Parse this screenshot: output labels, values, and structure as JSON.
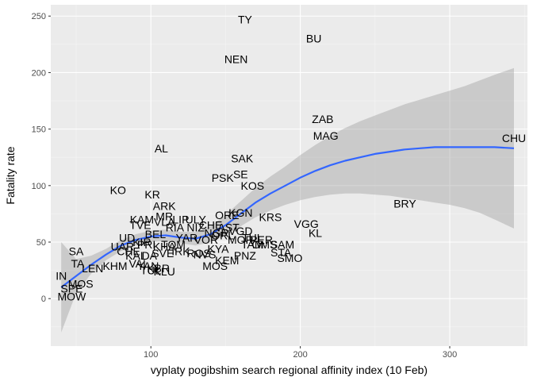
{
  "chart_data": {
    "type": "scatter",
    "title": "",
    "xlabel": "vyplaty pogibshim search regional affinity index (10 Feb)",
    "ylabel": "Fatality rate",
    "xlim": [
      33,
      352
    ],
    "ylim": [
      -42,
      260
    ],
    "x_ticks": [
      100,
      200,
      300
    ],
    "y_ticks": [
      0,
      50,
      100,
      150,
      200,
      250
    ],
    "grid": true,
    "legend": "none",
    "colors": {
      "panel": "#ebebeb",
      "grid_major": "#ffffff",
      "grid_minor": "#f5f5f5",
      "smooth_line": "#3366ff",
      "ribbon": "#999999"
    },
    "points": [
      {
        "label": "TY",
        "x": 163,
        "y": 247
      },
      {
        "label": "BU",
        "x": 209,
        "y": 230
      },
      {
        "label": "NEN",
        "x": 157,
        "y": 212
      },
      {
        "label": "ZAB",
        "x": 215,
        "y": 159
      },
      {
        "label": "MAG",
        "x": 217,
        "y": 144
      },
      {
        "label": "CHU",
        "x": 343,
        "y": 142
      },
      {
        "label": "AL",
        "x": 107,
        "y": 133
      },
      {
        "label": "SAK",
        "x": 161,
        "y": 124
      },
      {
        "label": "SE",
        "x": 160,
        "y": 110
      },
      {
        "label": "PSK",
        "x": 148,
        "y": 107
      },
      {
        "label": "KOS",
        "x": 168,
        "y": 100
      },
      {
        "label": "KO",
        "x": 78,
        "y": 96
      },
      {
        "label": "KR",
        "x": 101,
        "y": 92
      },
      {
        "label": "BRY",
        "x": 270,
        "y": 84
      },
      {
        "label": "ARK",
        "x": 109,
        "y": 82
      },
      {
        "label": "KGN",
        "x": 160,
        "y": 76
      },
      {
        "label": "ORE",
        "x": 151,
        "y": 74
      },
      {
        "label": "KRS",
        "x": 180,
        "y": 72
      },
      {
        "label": "MR",
        "x": 109,
        "y": 73
      },
      {
        "label": "KAM",
        "x": 94,
        "y": 70
      },
      {
        "label": "VLA",
        "x": 109,
        "y": 68
      },
      {
        "label": "LIP",
        "x": 120,
        "y": 70
      },
      {
        "label": "ULY",
        "x": 130,
        "y": 70
      },
      {
        "label": "CHE",
        "x": 140,
        "y": 65
      },
      {
        "label": "AST",
        "x": 152,
        "y": 63
      },
      {
        "label": "TVE",
        "x": 93,
        "y": 65
      },
      {
        "label": "RIA",
        "x": 116,
        "y": 63
      },
      {
        "label": "NIZ",
        "x": 130,
        "y": 63
      },
      {
        "label": "NGR",
        "x": 144,
        "y": 58
      },
      {
        "label": "VGD",
        "x": 160,
        "y": 60
      },
      {
        "label": "VGG",
        "x": 204,
        "y": 66
      },
      {
        "label": "KL",
        "x": 210,
        "y": 58
      },
      {
        "label": "UD",
        "x": 84,
        "y": 54
      },
      {
        "label": "BEL",
        "x": 103,
        "y": 57
      },
      {
        "label": "YAR",
        "x": 124,
        "y": 54
      },
      {
        "label": "VOR",
        "x": 137,
        "y": 52
      },
      {
        "label": "ORL",
        "x": 148,
        "y": 56
      },
      {
        "label": "MOR",
        "x": 160,
        "y": 52
      },
      {
        "label": "TUL",
        "x": 168,
        "y": 54
      },
      {
        "label": "PER",
        "x": 174,
        "y": 52
      },
      {
        "label": "TAM",
        "x": 168,
        "y": 48
      },
      {
        "label": "OMS",
        "x": 176,
        "y": 48
      },
      {
        "label": "SAM",
        "x": 188,
        "y": 48
      },
      {
        "label": "STA",
        "x": 187,
        "y": 41
      },
      {
        "label": "SMO",
        "x": 193,
        "y": 36
      },
      {
        "label": "PNZ",
        "x": 163,
        "y": 38
      },
      {
        "label": "KYA",
        "x": 145,
        "y": 44
      },
      {
        "label": "TOM",
        "x": 115,
        "y": 48
      },
      {
        "label": "KHA",
        "x": 109,
        "y": 46
      },
      {
        "label": "PRI",
        "x": 97,
        "y": 48
      },
      {
        "label": "UAR",
        "x": 81,
        "y": 46
      },
      {
        "label": "KIR",
        "x": 94,
        "y": 50
      },
      {
        "label": "SA",
        "x": 50,
        "y": 42
      },
      {
        "label": "CHU2",
        "x": 85,
        "y": 42
      },
      {
        "label": "KEM",
        "x": 151,
        "y": 34
      },
      {
        "label": "NVS",
        "x": 136,
        "y": 39
      },
      {
        "label": "ROS",
        "x": 132,
        "y": 40
      },
      {
        "label": "IRK",
        "x": 120,
        "y": 42
      },
      {
        "label": "SVE",
        "x": 108,
        "y": 40
      },
      {
        "label": "DA",
        "x": 99,
        "y": 38
      },
      {
        "label": "KAL",
        "x": 90,
        "y": 38
      },
      {
        "label": "TA",
        "x": 51,
        "y": 31
      },
      {
        "label": "LEN",
        "x": 61,
        "y": 27
      },
      {
        "label": "KHM",
        "x": 76,
        "y": 29
      },
      {
        "label": "VAL",
        "x": 92,
        "y": 31
      },
      {
        "label": "YAN",
        "x": 98,
        "y": 29
      },
      {
        "label": "KBR",
        "x": 105,
        "y": 27
      },
      {
        "label": "MOS",
        "x": 143,
        "y": 29
      },
      {
        "label": "KLU",
        "x": 109,
        "y": 24
      },
      {
        "label": "TUL2",
        "x": 100,
        "y": 25
      },
      {
        "label": "IN",
        "x": 40,
        "y": 20
      },
      {
        "label": "MOS2",
        "x": 53,
        "y": 13
      },
      {
        "label": "SPE",
        "x": 47,
        "y": 9
      },
      {
        "label": "MOW",
        "x": 47,
        "y": 2
      }
    ],
    "display_labels": {
      "CHU2": "CHE",
      "TUL2": "TUL",
      "MOS2": "MOS"
    },
    "smooth": {
      "method": "loess",
      "x": [
        40,
        50,
        60,
        70,
        80,
        90,
        100,
        110,
        120,
        130,
        140,
        150,
        160,
        170,
        180,
        190,
        200,
        210,
        220,
        230,
        240,
        250,
        260,
        270,
        280,
        290,
        300,
        310,
        320,
        330,
        343
      ],
      "y": [
        10,
        20,
        30,
        39,
        47,
        52,
        55,
        56,
        54,
        53,
        57,
        65,
        75,
        85,
        93,
        100,
        107,
        113,
        118,
        122,
        125,
        128,
        130,
        132,
        133,
        134,
        134,
        134,
        134,
        134,
        133
      ],
      "lower": [
        -30,
        5,
        22,
        34,
        42,
        47,
        50,
        51,
        49,
        47,
        50,
        56,
        64,
        72,
        78,
        83,
        87,
        90,
        92,
        93,
        93,
        92,
        91,
        89,
        87,
        85,
        83,
        80,
        76,
        70,
        62
      ],
      "upper": [
        50,
        35,
        38,
        44,
        52,
        57,
        60,
        61,
        59,
        59,
        64,
        74,
        86,
        98,
        108,
        117,
        127,
        136,
        144,
        151,
        157,
        162,
        167,
        172,
        176,
        180,
        184,
        188,
        193,
        198,
        204
      ]
    }
  }
}
